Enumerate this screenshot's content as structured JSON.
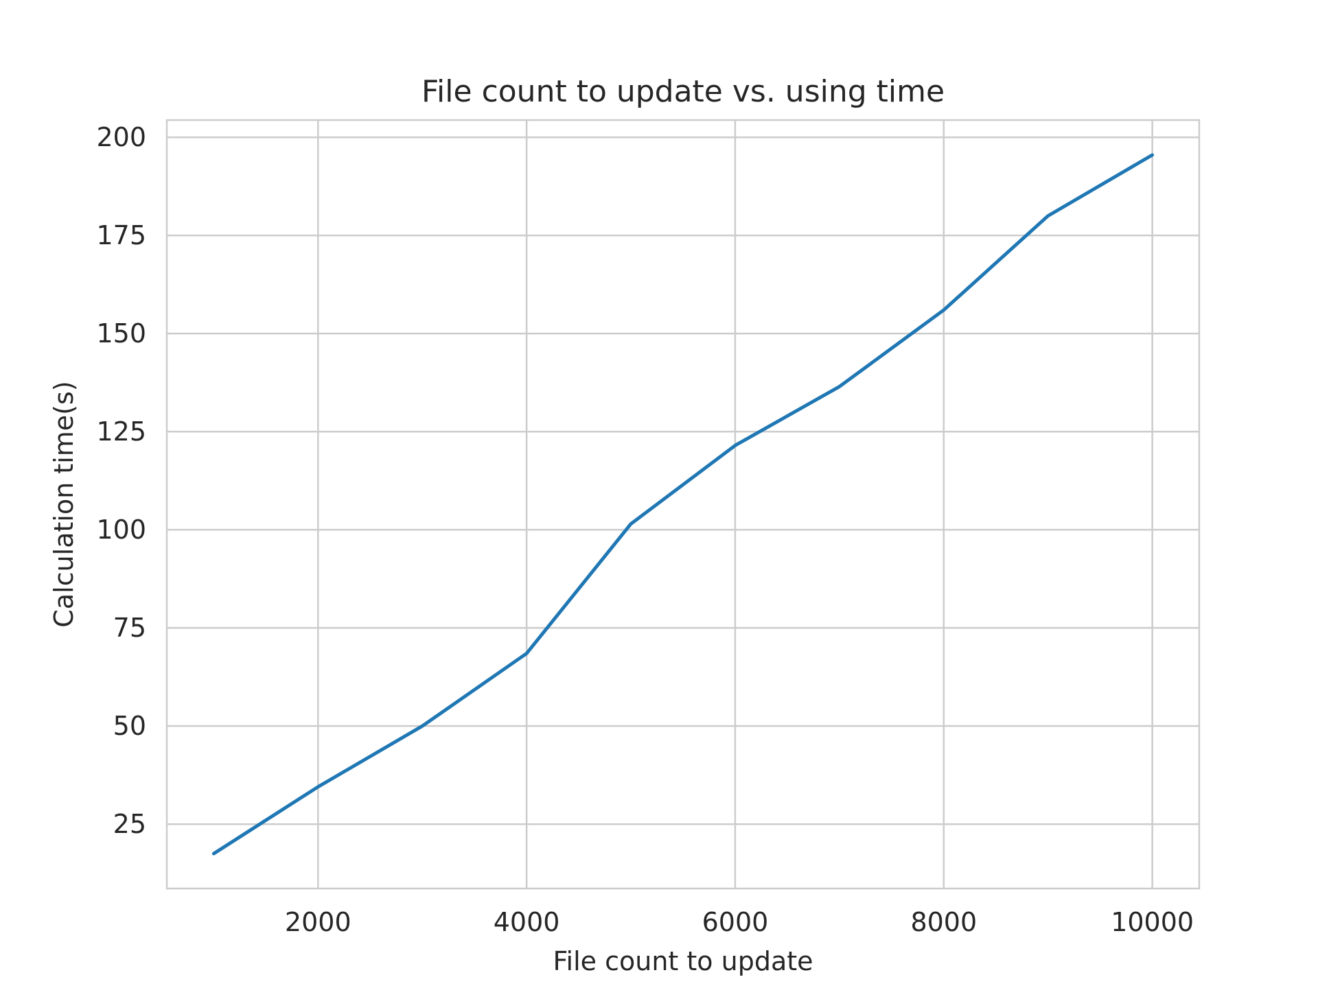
{
  "chart_data": {
    "type": "line",
    "title": "File count to update vs. using time",
    "xlabel": "File count to update",
    "ylabel": "Calculation time(s)",
    "x": [
      1000,
      2000,
      3000,
      4000,
      5000,
      6000,
      7000,
      8000,
      9000,
      10000
    ],
    "series": [
      {
        "values": [
          17.5,
          34.5,
          50.0,
          68.5,
          101.5,
          121.5,
          136.5,
          156.0,
          180.0,
          195.5
        ],
        "color": "#1f77b4"
      }
    ],
    "xlim": [
      550,
      10450
    ],
    "ylim": [
      8.6,
      204.4
    ],
    "xticks": [
      2000,
      4000,
      6000,
      8000,
      10000
    ],
    "yticks": [
      25,
      50,
      75,
      100,
      125,
      150,
      175,
      200
    ],
    "grid": true,
    "legend": false
  }
}
